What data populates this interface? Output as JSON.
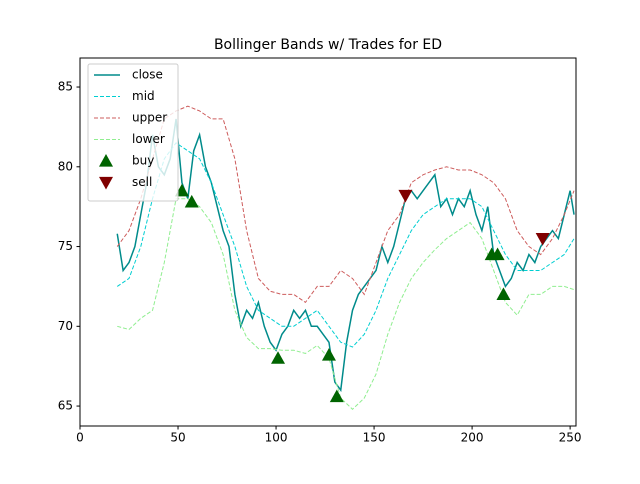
{
  "chart_data": {
    "type": "line",
    "title": "Bollinger Bands w/ Trades for ED",
    "xlim": [
      0,
      253
    ],
    "ylim": [
      63.75,
      86.82
    ],
    "xticks": [
      0,
      50,
      100,
      150,
      200,
      250
    ],
    "yticks": [
      65,
      70,
      75,
      80,
      85
    ],
    "legend": "upper left",
    "series": [
      {
        "name": "close",
        "kind": "line",
        "color": "#008b8b",
        "style": "solid",
        "x": [
          19,
          22,
          25,
          28,
          31,
          34,
          37,
          40,
          43,
          46,
          49,
          52,
          55,
          58,
          61,
          64,
          67,
          70,
          73,
          76,
          79,
          82,
          85,
          88,
          91,
          94,
          97,
          100,
          103,
          106,
          109,
          112,
          115,
          118,
          121,
          124,
          127,
          130,
          133,
          136,
          139,
          142,
          145,
          148,
          151,
          154,
          157,
          160,
          163,
          166,
          169,
          172,
          175,
          178,
          181,
          184,
          187,
          190,
          193,
          196,
          199,
          202,
          205,
          208,
          211,
          214,
          217,
          220,
          223,
          226,
          229,
          232,
          235,
          238,
          241,
          244,
          247,
          250,
          252
        ],
        "values": [
          75.8,
          73.5,
          74,
          75,
          77,
          79,
          82,
          80,
          79.5,
          80.5,
          83,
          79,
          78,
          81,
          82,
          80,
          79,
          77.5,
          76,
          75,
          72,
          70,
          71,
          70.5,
          71.5,
          70,
          69,
          68.5,
          69.5,
          70,
          71,
          70.5,
          71,
          70,
          70,
          69.5,
          69,
          66.5,
          66,
          69,
          71,
          72,
          72.5,
          73,
          73.5,
          75,
          74,
          75,
          76.5,
          78,
          78.5,
          78,
          78.5,
          79,
          79.5,
          77.5,
          78,
          77,
          78,
          77.5,
          78.5,
          77,
          76,
          77.5,
          74.5,
          73.5,
          72.5,
          73,
          74,
          73.5,
          74.5,
          74,
          75,
          75.5,
          76,
          75.5,
          77,
          78.5,
          77
        ]
      },
      {
        "name": "mid",
        "kind": "line",
        "color": "#00ced1",
        "style": "dashed",
        "x": [
          19,
          25,
          31,
          37,
          43,
          49,
          55,
          61,
          67,
          73,
          79,
          85,
          91,
          97,
          103,
          109,
          115,
          121,
          127,
          133,
          139,
          145,
          151,
          157,
          163,
          169,
          175,
          181,
          187,
          193,
          199,
          205,
          211,
          217,
          223,
          229,
          235,
          241,
          247,
          252
        ],
        "values": [
          72.5,
          73,
          75,
          78,
          80.5,
          81.5,
          81,
          80.5,
          79,
          77,
          75,
          72.5,
          71,
          70.5,
          70,
          70,
          70.5,
          71,
          70,
          69,
          68.7,
          69.5,
          71,
          73,
          74.5,
          76,
          77,
          77.5,
          78,
          78,
          78,
          77.5,
          76,
          74.5,
          73.5,
          73.5,
          73.5,
          74,
          74.5,
          75.5
        ]
      },
      {
        "name": "upper",
        "kind": "line",
        "color": "#cd5c5c",
        "style": "dashed",
        "x": [
          19,
          25,
          31,
          37,
          43,
          49,
          55,
          61,
          67,
          73,
          79,
          85,
          91,
          97,
          103,
          109,
          115,
          121,
          127,
          133,
          139,
          145,
          151,
          157,
          163,
          169,
          175,
          181,
          187,
          193,
          199,
          205,
          211,
          217,
          223,
          229,
          235,
          241,
          247,
          252
        ],
        "values": [
          75,
          76,
          78,
          80.5,
          83,
          83.5,
          83.8,
          83.5,
          83,
          83,
          80.5,
          76,
          73,
          72.2,
          72,
          72,
          71.5,
          72.5,
          72.5,
          73.5,
          73,
          72,
          74,
          76,
          77,
          79,
          79.5,
          79.8,
          80,
          79.8,
          79.8,
          79.5,
          79,
          78,
          76,
          75,
          74.5,
          75.5,
          77,
          78.5
        ]
      },
      {
        "name": "lower",
        "kind": "line",
        "color": "#90ee90",
        "style": "dashed",
        "x": [
          19,
          25,
          31,
          37,
          43,
          49,
          55,
          61,
          67,
          73,
          79,
          85,
          91,
          97,
          103,
          109,
          115,
          121,
          127,
          133,
          139,
          145,
          151,
          157,
          163,
          169,
          175,
          181,
          187,
          193,
          199,
          205,
          211,
          217,
          223,
          229,
          235,
          241,
          247,
          252
        ],
        "values": [
          70,
          69.8,
          70.5,
          71,
          74,
          78,
          78,
          77.5,
          76.5,
          74.5,
          71,
          69.3,
          68.6,
          68.6,
          68.5,
          68.5,
          68.3,
          68.8,
          68,
          65.5,
          64.8,
          65.5,
          67,
          69.5,
          71.5,
          73,
          74,
          74.8,
          75.5,
          76,
          76.5,
          75.5,
          73.5,
          71.5,
          70.7,
          72,
          72,
          72.5,
          72.5,
          72.3
        ]
      },
      {
        "name": "buy",
        "kind": "scatter",
        "marker": "up",
        "color": "#006400",
        "x": [
          52,
          57,
          101,
          127,
          131,
          210,
          213,
          216
        ],
        "values": [
          78.5,
          77.8,
          68,
          68.2,
          65.6,
          74.5,
          74.5,
          72
        ]
      },
      {
        "name": "sell",
        "kind": "scatter",
        "marker": "down",
        "color": "#800000",
        "x": [
          166,
          236
        ],
        "values": [
          78.2,
          75.5
        ]
      }
    ]
  }
}
